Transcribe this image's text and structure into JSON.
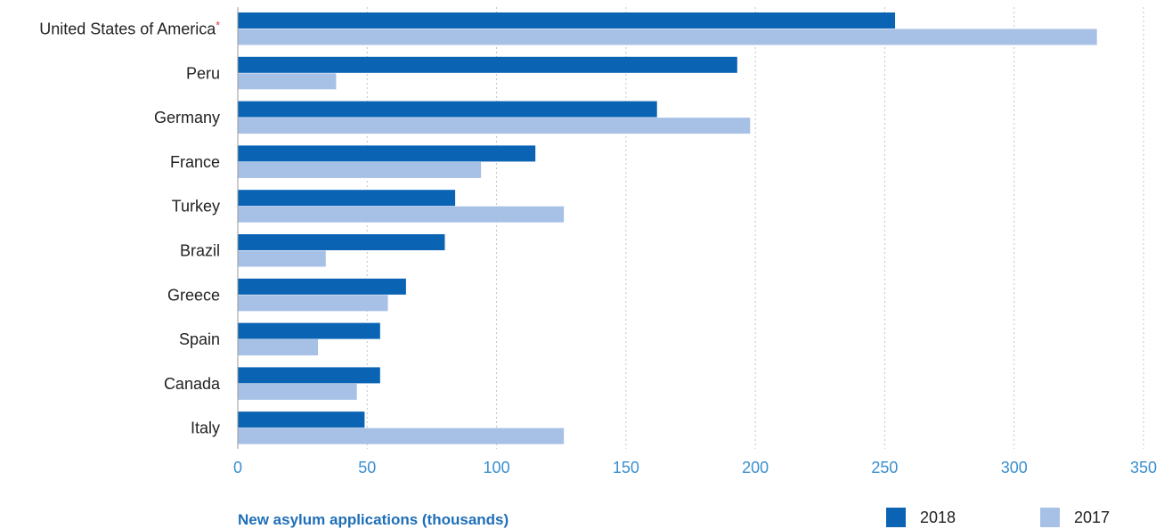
{
  "chart_data": {
    "type": "bar",
    "orientation": "horizontal",
    "categories": [
      "United States of America",
      "Peru",
      "Germany",
      "France",
      "Turkey",
      "Brazil",
      "Greece",
      "Spain",
      "Canada",
      "Italy"
    ],
    "category_marks": {
      "United States of America": "*"
    },
    "series": [
      {
        "name": "2018",
        "color": "#0a63b3",
        "values": [
          254,
          193,
          162,
          115,
          84,
          80,
          65,
          55,
          55,
          49
        ]
      },
      {
        "name": "2017",
        "color": "#a7c1e6",
        "values": [
          332,
          38,
          198,
          94,
          126,
          34,
          58,
          31,
          46,
          126
        ]
      }
    ],
    "xlabel": "New asylum applications (thousands)",
    "xlim": [
      0,
      350
    ],
    "xticks": [
      0,
      50,
      100,
      150,
      200,
      250,
      300,
      350
    ],
    "grid": "vertical dotted",
    "legend_position": "bottom-right"
  }
}
